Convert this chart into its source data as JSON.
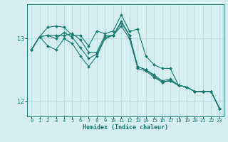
{
  "xlabel": "Humidex (Indice chaleur)",
  "background_color": "#d5efef",
  "line_color": "#1a7a6e",
  "grid_color": "#b0d8d8",
  "xlim": [
    -0.5,
    23.5
  ],
  "ylim": [
    11.75,
    13.55
  ],
  "yticks": [
    12,
    13
  ],
  "xticks": [
    0,
    1,
    2,
    3,
    4,
    5,
    6,
    7,
    8,
    9,
    10,
    11,
    12,
    13,
    14,
    15,
    16,
    17,
    18,
    19,
    20,
    21,
    22,
    23
  ],
  "series": [
    [
      12.82,
      13.03,
      12.88,
      12.82,
      13.0,
      12.92,
      12.72,
      12.55,
      12.72,
      13.0,
      13.05,
      13.2,
      13.0,
      12.52,
      12.48,
      12.38,
      12.3,
      12.32,
      12.25,
      12.22,
      12.15,
      12.15,
      12.15,
      11.88
    ],
    [
      12.82,
      13.03,
      13.18,
      13.2,
      13.18,
      13.05,
      13.05,
      12.88,
      13.12,
      13.08,
      13.12,
      13.38,
      13.12,
      13.15,
      12.72,
      12.58,
      12.52,
      12.52,
      12.25,
      12.22,
      12.15,
      12.15,
      12.15,
      11.88
    ],
    [
      12.82,
      13.03,
      13.05,
      13.05,
      13.05,
      13.08,
      12.98,
      12.78,
      12.78,
      13.05,
      13.05,
      13.25,
      13.05,
      12.55,
      12.5,
      12.42,
      12.32,
      12.35,
      12.25,
      12.22,
      12.15,
      12.15,
      12.15,
      11.88
    ],
    [
      12.82,
      13.03,
      13.05,
      13.0,
      13.1,
      13.02,
      12.85,
      12.68,
      12.75,
      13.02,
      13.05,
      13.28,
      13.05,
      12.55,
      12.5,
      12.4,
      12.3,
      12.33,
      12.25,
      12.22,
      12.15,
      12.15,
      12.15,
      11.88
    ]
  ]
}
